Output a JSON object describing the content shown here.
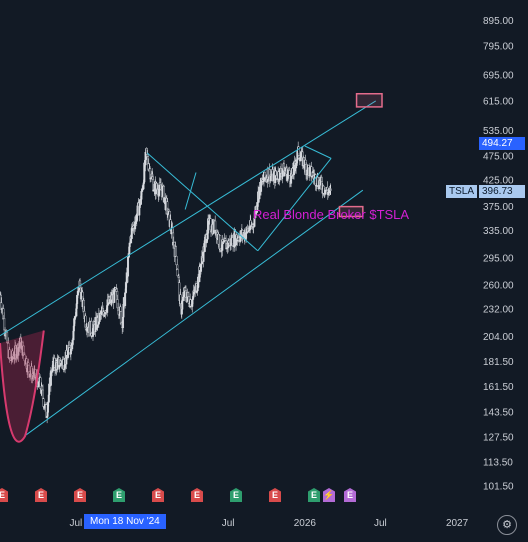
{
  "chart_data": {
    "type": "candlestick",
    "symbol": "TSLA",
    "current_price": "396.73",
    "crosshair_price": "494.27",
    "crosshair_date": "Mon 18 Nov '24",
    "annotation": "Real Blonde Broker $TSLA",
    "y_ticks": [
      "895.00",
      "795.00",
      "695.00",
      "615.00",
      "535.00",
      "475.00",
      "425.00",
      "375.00",
      "335.00",
      "295.00",
      "260.00",
      "232.00",
      "204.00",
      "181.50",
      "161.50",
      "143.50",
      "127.50",
      "113.50",
      "101.50"
    ],
    "x_ticks": [
      "Jul",
      "Mon 18 Nov '24",
      "Jul",
      "2026",
      "Jul",
      "2027"
    ],
    "yscale": "log",
    "ylim": [
      95,
      950
    ],
    "x_range": [
      "2024-01",
      "2027-02"
    ],
    "close_path": [
      [
        "2024-01-02",
        248
      ],
      [
        "2024-01-25",
        182
      ],
      [
        "2024-02-20",
        198
      ],
      [
        "2024-03-10",
        175
      ],
      [
        "2024-04-05",
        165
      ],
      [
        "2024-04-22",
        142
      ],
      [
        "2024-05-05",
        178
      ],
      [
        "2024-06-05",
        182
      ],
      [
        "2024-06-20",
        196
      ],
      [
        "2024-07-10",
        262
      ],
      [
        "2024-07-25",
        218
      ],
      [
        "2024-08-10",
        210
      ],
      [
        "2024-09-05",
        230
      ],
      [
        "2024-10-05",
        250
      ],
      [
        "2024-10-20",
        218
      ],
      [
        "2024-10-30",
        260
      ],
      [
        "2024-11-10",
        330
      ],
      [
        "2024-11-18",
        345
      ],
      [
        "2024-12-05",
        390
      ],
      [
        "2024-12-17",
        479
      ],
      [
        "2025-01-05",
        410
      ],
      [
        "2025-01-25",
        405
      ],
      [
        "2025-02-10",
        355
      ],
      [
        "2025-02-28",
        293
      ],
      [
        "2025-03-10",
        230
      ],
      [
        "2025-03-18",
        250
      ],
      [
        "2025-04-05",
        240
      ],
      [
        "2025-04-20",
        265
      ],
      [
        "2025-05-15",
        345
      ],
      [
        "2025-06-01",
        340
      ],
      [
        "2025-06-15",
        310
      ],
      [
        "2025-07-01",
        315
      ],
      [
        "2025-07-20",
        325
      ],
      [
        "2025-08-10",
        330
      ],
      [
        "2025-08-30",
        345
      ],
      [
        "2025-09-15",
        410
      ],
      [
        "2025-10-05",
        440
      ],
      [
        "2025-10-20",
        430
      ],
      [
        "2025-11-10",
        445
      ],
      [
        "2025-12-01",
        430
      ],
      [
        "2025-12-17",
        485
      ],
      [
        "2026-01-05",
        450
      ],
      [
        "2026-01-25",
        430
      ],
      [
        "2026-02-15",
        410
      ],
      [
        "2026-03-05",
        397
      ]
    ],
    "marks": {
      "trendlines": [
        [
          [
            "2024-01-01",
            205
          ],
          [
            "2026-06-20",
            615
          ]
        ],
        [
          [
            "2024-02-28",
            128
          ],
          [
            "2026-05-20",
            405
          ]
        ],
        [
          [
            "2024-12-19",
            482
          ],
          [
            "2025-09-10",
            305
          ]
        ],
        [
          [
            "2025-09-10",
            305
          ],
          [
            "2026-03-05",
            470
          ]
        ],
        [
          [
            "2026-03-05",
            470
          ],
          [
            "2026-01-01",
            498
          ]
        ],
        [
          [
            "2025-04-15",
            440
          ],
          [
            "2025-03-20",
            370
          ]
        ]
      ],
      "boxes": [
        {
          "from": "2026-05-05",
          "to": "2026-07-05",
          "low": 598,
          "high": 636
        },
        {
          "from": "2026-03-25",
          "to": "2026-05-20",
          "low": 358,
          "high": 375
        }
      ],
      "earnings": [
        {
          "label": "E",
          "color": "#d84b4b"
        },
        {
          "label": "E",
          "color": "#d84b4b"
        },
        {
          "label": "E",
          "color": "#d84b4b"
        },
        {
          "label": "E",
          "color": "#2e9e6e"
        },
        {
          "label": "E",
          "color": "#d84b4b"
        },
        {
          "label": "E",
          "color": "#d84b4b"
        },
        {
          "label": "E",
          "color": "#2e9e6e"
        },
        {
          "label": "E",
          "color": "#d84b4b"
        },
        {
          "label": "E",
          "color": "#2e9e6e"
        },
        {
          "label": "⚡",
          "color": "#b36bd6"
        },
        {
          "label": "E",
          "color": "#b36bd6"
        }
      ]
    },
    "colors": {
      "background": "#121a25",
      "candles": "#d8dbe0",
      "trendline": "#37bcd6",
      "box": "#e46c8c",
      "annotation": "#d41fd4",
      "crosshair": "#2962ff",
      "price_tag": "#a9c9ef"
    }
  },
  "toolbar": {
    "settings_icon": "settings-gear-icon"
  }
}
